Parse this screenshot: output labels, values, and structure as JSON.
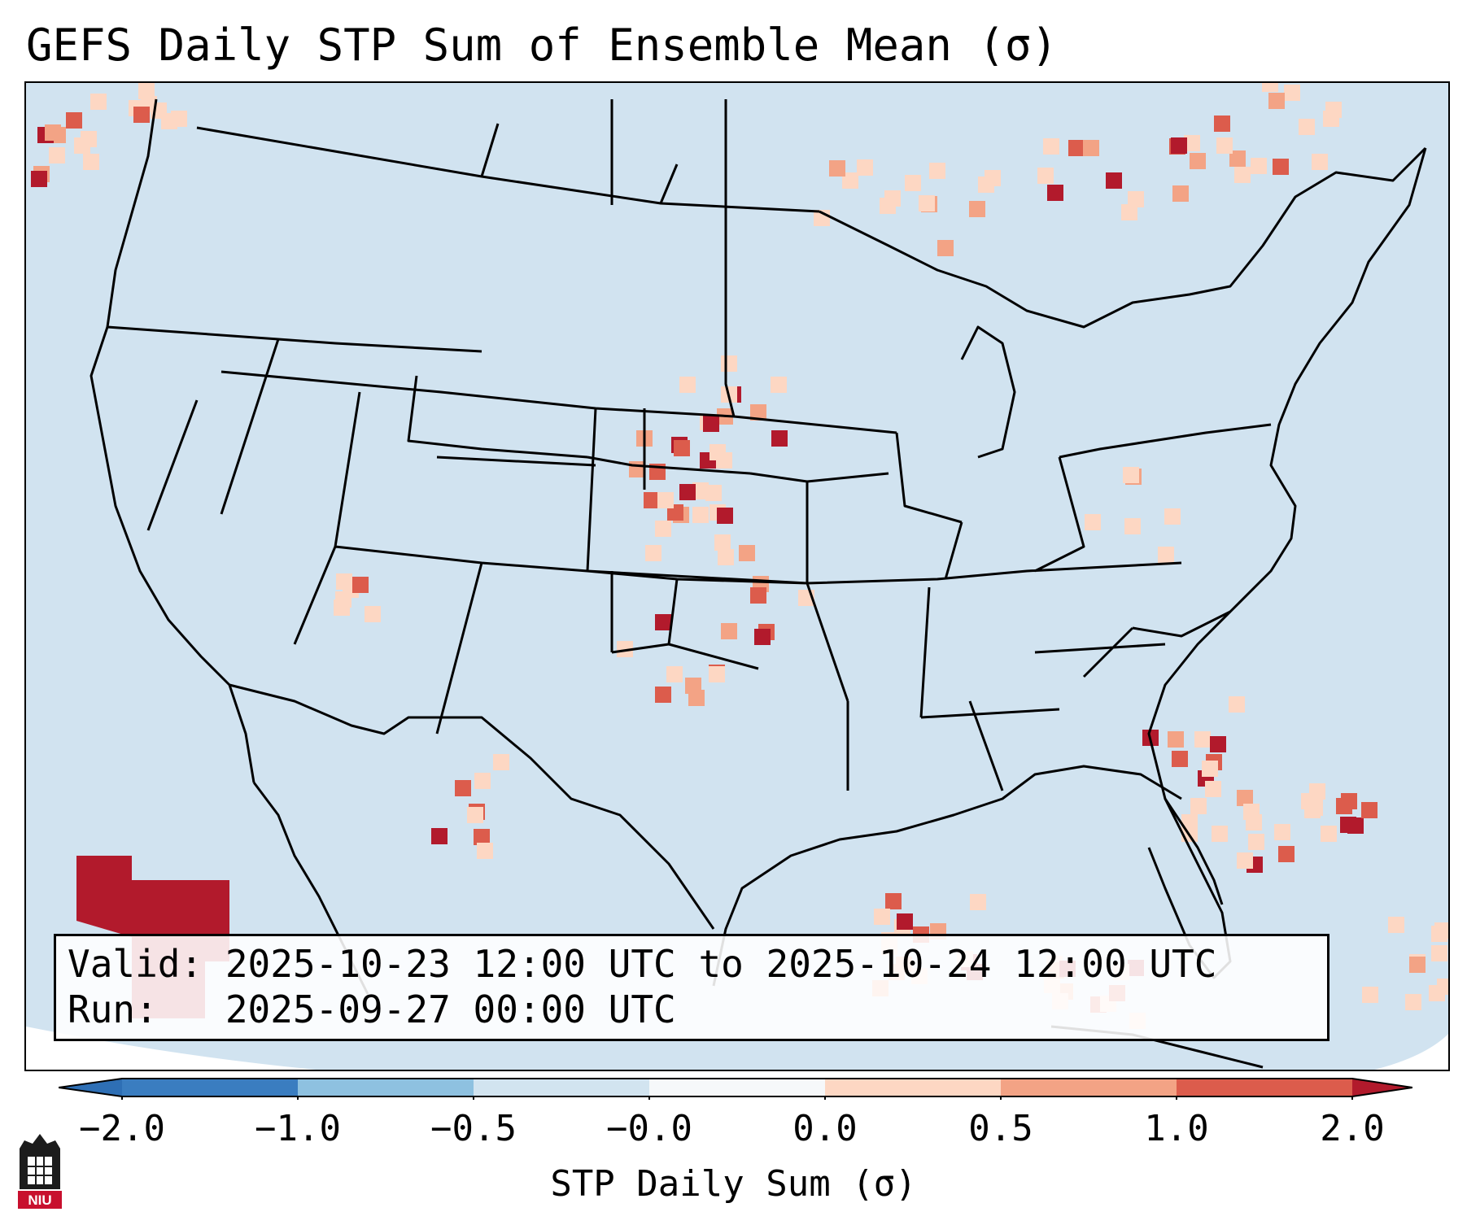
{
  "title": "GEFS Daily STP Sum of Ensemble Mean (σ)",
  "annotation": {
    "valid_line": "Valid: 2025-10-23 12:00 UTC to 2025-10-24 12:00 UTC",
    "run_line": "Run:   2025-09-27 00:00 UTC"
  },
  "colorbar": {
    "label": "STP Daily Sum (σ)",
    "ticks": [
      "−2.0",
      "−1.0",
      "−0.5",
      "−0.0",
      "0.0",
      "0.5",
      "1.0",
      "2.0"
    ],
    "colors": [
      "#3a7dc0",
      "#8ec1e0",
      "#d2e4f0",
      "#f6f8fa",
      "#fdd7c3",
      "#f3a385",
      "#dc5c4c",
      "#b21a2c"
    ],
    "extend": "both"
  },
  "logo": {
    "text": "NIU"
  },
  "map": {
    "region": "Continental United States",
    "background_color": "#d1e3f0",
    "outline_color": "#000000"
  }
}
